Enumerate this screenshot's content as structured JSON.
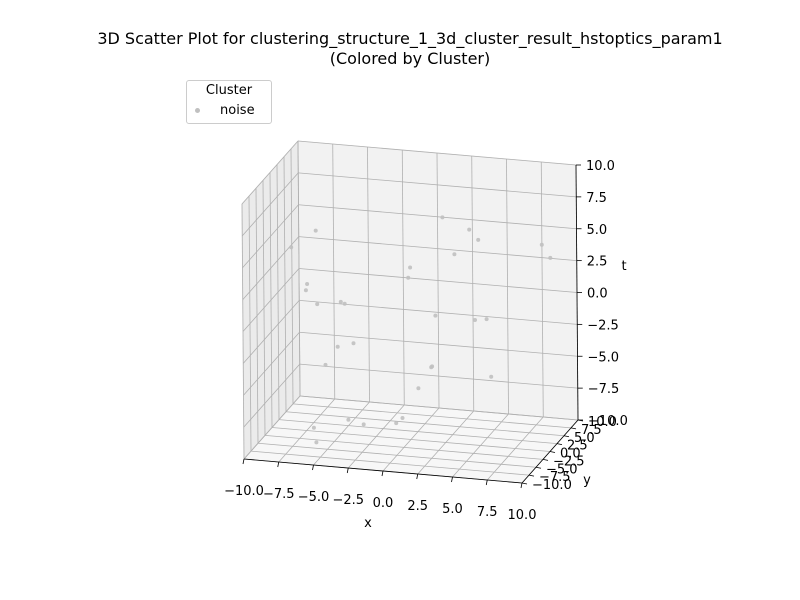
{
  "chart_data": {
    "type": "scatter",
    "title_line1": "3D Scatter Plot for clustering_structure_1_3d_cluster_result_hstoptics_param1",
    "title_line2": "(Colored by Cluster)",
    "xlabel": "x",
    "ylabel": "y",
    "zlabel": "t",
    "xlim": [
      -10,
      10
    ],
    "ylim": [
      -10,
      10
    ],
    "zlim": [
      -10,
      10
    ],
    "x_ticks": [
      "−10.0",
      "−7.5",
      "−5.0",
      "−2.5",
      "0.0",
      "2.5",
      "5.0",
      "7.5",
      "10.0"
    ],
    "y_ticks": [
      "−10.0",
      "−7.5",
      "−5.0",
      "−2.5",
      "0.0",
      "2.5",
      "5.0",
      "7.5",
      "10.0"
    ],
    "z_ticks": [
      "−10.0",
      "−7.5",
      "−5.0",
      "−2.5",
      "0.0",
      "2.5",
      "5.0",
      "7.5",
      "10.0"
    ],
    "grid": true,
    "legend": {
      "title": "Cluster",
      "placement": "top-left",
      "entries": [
        "noise"
      ]
    },
    "series": [
      {
        "name": "noise",
        "color": "#c0c0c0",
        "points": [
          [
            -7.7,
            4.7,
            4.5
          ],
          [
            -9.8,
            6.3,
            2.6
          ],
          [
            -8.0,
            3.0,
            0.7
          ],
          [
            -8.4,
            4.5,
            -0.2
          ],
          [
            -6.9,
            1.1,
            -0.3
          ],
          [
            -5.3,
            1.6,
            -0.1
          ],
          [
            -5.0,
            1.5,
            -0.2
          ],
          [
            -6.2,
            4.8,
            -4.5
          ],
          [
            -6.7,
            2.9,
            -5.5
          ],
          [
            -4.9,
            4.0,
            -3.9
          ],
          [
            0.9,
            7.3,
            5.7
          ],
          [
            2.5,
            8.9,
            4.5
          ],
          [
            3.1,
            9.1,
            3.7
          ],
          [
            1.6,
            8.0,
            2.7
          ],
          [
            4.7,
            4.0,
            -1.1
          ],
          [
            3.6,
            5.3,
            -1.6
          ],
          [
            1.3,
            2.6,
            -0.8
          ],
          [
            -0.8,
            4.1,
            2.4
          ],
          [
            -0.7,
            2.9,
            1.9
          ],
          [
            1.5,
            0.3,
            -4.2
          ],
          [
            1.8,
            -1.5,
            -3.8
          ],
          [
            0.5,
            0.3,
            -6.0
          ],
          [
            8.1,
            7.0,
            4.3
          ],
          [
            8.3,
            9.0,
            2.8
          ],
          [
            5.3,
            2.5,
            -5.2
          ],
          [
            -0.7,
            0.5,
            -8.5
          ],
          [
            -1.2,
            0.7,
            -9.0
          ],
          [
            -4.6,
            0.5,
            -9.0
          ],
          [
            -6.8,
            -0.9,
            -9.5
          ],
          [
            -3.6,
            1.0,
            -9.4
          ],
          [
            -6.0,
            -4.0,
            -9.8
          ]
        ]
      }
    ]
  }
}
